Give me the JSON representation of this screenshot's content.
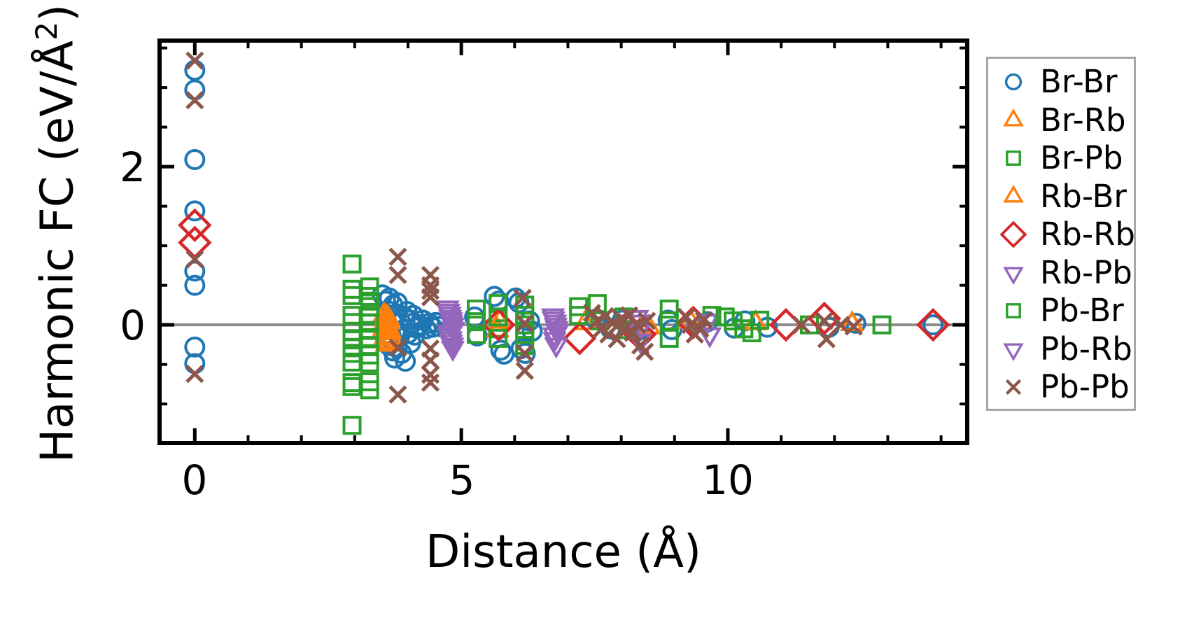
{
  "figure": {
    "background": "#ffffff",
    "axis_color": "#000000",
    "zero_line_color": "#8c8c8c",
    "legend_border_color": "#a6a6a6"
  },
  "chart_data": {
    "type": "scatter",
    "title": "",
    "xlabel": "Distance (Å)",
    "ylabel_prefix": "Harmonic FC (eV/Å",
    "ylabel_sup": "2",
    "ylabel_suffix": ")",
    "xlim": [
      -0.7,
      14.53
    ],
    "ylim": [
      -1.52,
      3.62
    ],
    "grid": false,
    "zero_line": true,
    "legend_position": "outside-right",
    "x_major_ticks": [
      0,
      5,
      10
    ],
    "x_major_tick_labels": [
      "0",
      "5",
      "10"
    ],
    "x_minor_ticks": [
      1,
      2,
      3,
      4,
      6,
      7,
      8,
      9,
      11,
      12,
      13,
      14
    ],
    "y_major_ticks": [
      2,
      0
    ],
    "y_major_tick_labels": [
      "2",
      "0"
    ],
    "y_minor_ticks": [
      -1.5,
      -1.0,
      -0.5,
      0.5,
      1.0,
      1.5,
      2.5,
      3.0,
      3.5
    ],
    "series": [
      {
        "name": "Br-Br",
        "marker": "circle",
        "color": "#1f77b4",
        "points": [
          [
            0,
            3.22
          ],
          [
            0,
            2.97
          ],
          [
            0,
            2.09
          ],
          [
            0,
            1.44
          ],
          [
            0,
            0.68
          ],
          [
            0,
            0.5
          ],
          [
            0,
            -0.28
          ],
          [
            0,
            -0.49
          ],
          [
            3.52,
            0.38
          ],
          [
            3.58,
            0.3
          ],
          [
            3.65,
            0.34
          ],
          [
            3.72,
            0.25
          ],
          [
            3.8,
            0.28
          ],
          [
            3.62,
            0.18
          ],
          [
            3.7,
            0.1
          ],
          [
            3.78,
            0.14
          ],
          [
            3.85,
            0.06
          ],
          [
            3.92,
            0.11
          ],
          [
            3.98,
            0.17
          ],
          [
            4.04,
            0.06
          ],
          [
            4.1,
            0.12
          ],
          [
            3.6,
            -0.06
          ],
          [
            3.68,
            -0.13
          ],
          [
            3.76,
            -0.08
          ],
          [
            3.84,
            -0.16
          ],
          [
            3.92,
            -0.06
          ],
          [
            4.0,
            -0.11
          ],
          [
            4.08,
            0.02
          ],
          [
            4.16,
            -0.04
          ],
          [
            3.64,
            -0.26
          ],
          [
            3.72,
            -0.33
          ],
          [
            3.8,
            -0.28
          ],
          [
            3.88,
            -0.36
          ],
          [
            3.95,
            -0.46
          ],
          [
            3.75,
            -0.42
          ],
          [
            3.58,
            -0.21
          ],
          [
            4.05,
            -0.23
          ],
          [
            4.13,
            -0.13
          ],
          [
            4.22,
            0.0
          ],
          [
            4.28,
            0.06
          ],
          [
            4.34,
            -0.05
          ],
          [
            4.4,
            0.02
          ],
          [
            4.46,
            -0.03
          ],
          [
            4.52,
            0.03
          ],
          [
            4.58,
            -0.02
          ],
          [
            5.25,
            0.1
          ],
          [
            5.3,
            -0.14
          ],
          [
            5.62,
            0.36
          ],
          [
            5.7,
            0.3
          ],
          [
            5.74,
            -0.32
          ],
          [
            5.8,
            -0.37
          ],
          [
            6.02,
            0.34
          ],
          [
            6.08,
            0.28
          ],
          [
            6.12,
            -0.3
          ],
          [
            6.2,
            -0.36
          ],
          [
            6.28,
            0.05
          ],
          [
            6.33,
            -0.08
          ],
          [
            7.52,
            0.07
          ],
          [
            7.8,
            -0.05
          ],
          [
            8.02,
            0.06
          ],
          [
            8.32,
            -0.07
          ],
          [
            8.88,
            0.06
          ],
          [
            8.95,
            -0.06
          ],
          [
            9.62,
            0.04
          ],
          [
            10.12,
            -0.04
          ],
          [
            10.32,
            0.05
          ],
          [
            10.74,
            -0.03
          ],
          [
            11.9,
            -0.03
          ],
          [
            12.4,
            0.02
          ],
          [
            13.85,
            0.0
          ]
        ]
      },
      {
        "name": "Br-Rb",
        "marker": "triangle-up",
        "color": "#ff7f0e",
        "points": [
          [
            3.55,
            0.12
          ],
          [
            3.58,
            0.05
          ],
          [
            3.62,
            -0.02
          ],
          [
            3.65,
            -0.1
          ],
          [
            3.68,
            -0.18
          ],
          [
            3.6,
            -0.25
          ],
          [
            3.57,
            0.01
          ],
          [
            3.63,
            0.08
          ],
          [
            5.68,
            -0.07
          ],
          [
            7.32,
            0.02
          ],
          [
            8.52,
            -0.03
          ],
          [
            10.52,
            0.02
          ],
          [
            12.33,
            0.01
          ]
        ]
      },
      {
        "name": "Br-Pb",
        "marker": "square",
        "color": "#2ca02c",
        "points": [
          [
            2.95,
            0.77
          ],
          [
            2.95,
            0.45
          ],
          [
            2.95,
            0.12
          ],
          [
            2.95,
            -0.08
          ],
          [
            2.95,
            -0.29
          ],
          [
            2.95,
            -0.47
          ],
          [
            2.95,
            -1.27
          ],
          [
            3.28,
            0.48
          ],
          [
            3.28,
            0.3
          ],
          [
            3.28,
            0.12
          ],
          [
            3.28,
            -0.07
          ],
          [
            3.28,
            -0.26
          ],
          [
            3.28,
            -0.48
          ],
          [
            3.28,
            -0.82
          ],
          [
            5.28,
            0.2
          ],
          [
            5.28,
            -0.12
          ],
          [
            5.69,
            0.27
          ],
          [
            5.69,
            -0.05
          ],
          [
            6.19,
            0.25
          ],
          [
            6.19,
            0.0
          ],
          [
            6.19,
            -0.26
          ],
          [
            7.2,
            0.23
          ],
          [
            7.55,
            0.27
          ],
          [
            8.05,
            0.1
          ],
          [
            8.9,
            0.2
          ],
          [
            8.9,
            -0.17
          ],
          [
            9.7,
            0.12
          ],
          [
            10.1,
            0.05
          ],
          [
            10.45,
            -0.1
          ],
          [
            11.53,
            0.0
          ],
          [
            12.89,
            0.0
          ]
        ]
      },
      {
        "name": "Rb-Br",
        "marker": "triangle-up",
        "color": "#ff7f0e",
        "points": [
          [
            3.55,
            -0.05
          ],
          [
            3.6,
            0.1
          ],
          [
            3.64,
            0.03
          ],
          [
            3.58,
            -0.15
          ],
          [
            3.66,
            -0.08
          ],
          [
            3.62,
            -0.22
          ],
          [
            5.72,
            0.04
          ],
          [
            9.3,
            0.04
          ]
        ]
      },
      {
        "name": "Rb-Rb",
        "marker": "diamond",
        "color": "#d62728",
        "points": [
          [
            0,
            1.26
          ],
          [
            0,
            1.04
          ],
          [
            5.7,
            0.0
          ],
          [
            7.22,
            -0.17
          ],
          [
            8.35,
            -0.12
          ],
          [
            9.35,
            0.03
          ],
          [
            11.09,
            0.0
          ],
          [
            11.81,
            0.08
          ],
          [
            13.85,
            0.0
          ]
        ]
      },
      {
        "name": "Rb-Pb",
        "marker": "triangle-down",
        "color": "#9467bd",
        "points": [
          [
            4.74,
            0.22
          ],
          [
            4.78,
            0.14
          ],
          [
            4.81,
            0.07
          ],
          [
            4.84,
            0.0
          ],
          [
            4.77,
            -0.09
          ],
          [
            4.8,
            -0.17
          ],
          [
            4.83,
            -0.25
          ],
          [
            6.72,
            0.12
          ],
          [
            6.76,
            0.04
          ],
          [
            6.79,
            -0.04
          ],
          [
            6.74,
            -0.12
          ],
          [
            8.3,
            0.1
          ],
          [
            8.34,
            -0.06
          ],
          [
            9.62,
            0.05
          ]
        ]
      },
      {
        "name": "Pb-Br",
        "marker": "square",
        "color": "#2ca02c",
        "points": [
          [
            2.95,
            0.37
          ],
          [
            2.95,
            0.03
          ],
          [
            2.95,
            -0.19
          ],
          [
            2.95,
            -0.36
          ],
          [
            2.95,
            -0.73
          ],
          [
            2.95,
            -0.78
          ],
          [
            3.28,
            0.36
          ],
          [
            3.28,
            0.23
          ],
          [
            3.28,
            0.02
          ],
          [
            3.28,
            -0.16
          ],
          [
            3.28,
            -0.38
          ],
          [
            3.28,
            -0.72
          ],
          [
            5.28,
            0.04
          ],
          [
            5.69,
            0.1
          ],
          [
            5.69,
            -0.17
          ],
          [
            6.19,
            0.12
          ],
          [
            6.19,
            -0.12
          ],
          [
            7.2,
            0.12
          ],
          [
            7.6,
            0.05
          ],
          [
            8.15,
            -0.06
          ],
          [
            8.9,
            0.05
          ],
          [
            9.95,
            0.1
          ],
          [
            10.3,
            -0.05
          ],
          [
            10.6,
            0.06
          ]
        ]
      },
      {
        "name": "Pb-Rb",
        "marker": "triangle-down",
        "color": "#9467bd",
        "points": [
          [
            4.76,
            0.18
          ],
          [
            4.79,
            0.1
          ],
          [
            4.82,
            0.03
          ],
          [
            4.85,
            -0.05
          ],
          [
            4.78,
            -0.13
          ],
          [
            4.81,
            -0.21
          ],
          [
            4.84,
            -0.29
          ],
          [
            6.73,
            0.08
          ],
          [
            6.77,
            0.0
          ],
          [
            6.8,
            -0.08
          ],
          [
            6.75,
            -0.18
          ],
          [
            6.78,
            -0.25
          ],
          [
            8.32,
            0.04
          ],
          [
            8.36,
            -0.2
          ],
          [
            9.66,
            -0.12
          ]
        ]
      },
      {
        "name": "Pb-Pb",
        "marker": "x",
        "color": "#8c564b",
        "points": [
          [
            0,
            3.34
          ],
          [
            0,
            2.84
          ],
          [
            0,
            0.83
          ],
          [
            0,
            -0.62
          ],
          [
            3.81,
            0.86
          ],
          [
            3.81,
            0.63
          ],
          [
            3.81,
            -0.29
          ],
          [
            3.81,
            -0.88
          ],
          [
            4.42,
            0.63
          ],
          [
            4.42,
            0.5
          ],
          [
            4.42,
            0.43
          ],
          [
            4.42,
            0.35
          ],
          [
            4.42,
            -0.3
          ],
          [
            4.42,
            -0.45
          ],
          [
            4.42,
            -0.63
          ],
          [
            4.42,
            -0.73
          ],
          [
            6.15,
            0.34
          ],
          [
            6.19,
            0.02
          ],
          [
            6.19,
            -0.36
          ],
          [
            6.19,
            -0.58
          ],
          [
            7.45,
            0.15
          ],
          [
            7.55,
            0.05
          ],
          [
            7.62,
            -0.06
          ],
          [
            7.7,
            0.11
          ],
          [
            7.76,
            -0.12
          ],
          [
            7.85,
            0.03
          ],
          [
            7.92,
            -0.18
          ],
          [
            8.0,
            0.08
          ],
          [
            8.06,
            -0.05
          ],
          [
            8.15,
            0.12
          ],
          [
            8.22,
            -0.1
          ],
          [
            8.3,
            0.0
          ],
          [
            8.36,
            -0.26
          ],
          [
            8.44,
            -0.34
          ],
          [
            8.48,
            0.05
          ],
          [
            9.22,
            0.1
          ],
          [
            9.3,
            0.0
          ],
          [
            9.38,
            -0.12
          ],
          [
            9.48,
            -0.05
          ],
          [
            9.55,
            0.06
          ],
          [
            11.38,
            0.0
          ],
          [
            11.81,
            0.05
          ],
          [
            11.85,
            -0.18
          ],
          [
            12.12,
            0.0
          ],
          [
            12.36,
            -0.02
          ]
        ]
      }
    ]
  }
}
